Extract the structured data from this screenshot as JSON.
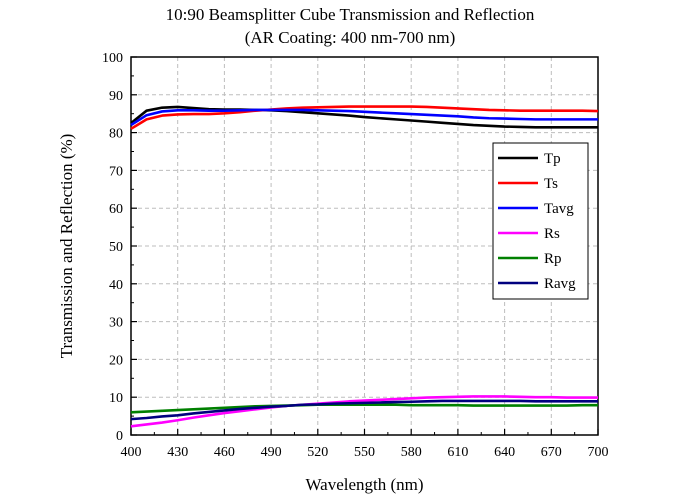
{
  "chart_data": {
    "type": "line",
    "title": "10:90 Beamsplitter Cube Transmission and Reflection",
    "subtitle": "(AR Coating: 400 nm-700 nm)",
    "xlabel": "Wavelength (nm)",
    "ylabel": "Transmission and Reflection (%)",
    "xlim": [
      400,
      700
    ],
    "ylim": [
      0,
      100
    ],
    "xticks": [
      400,
      430,
      460,
      490,
      520,
      550,
      580,
      610,
      640,
      670,
      700
    ],
    "yticks": [
      0,
      10,
      20,
      30,
      40,
      50,
      60,
      70,
      80,
      90,
      100
    ],
    "grid": true,
    "legend_position": "right",
    "x": [
      400,
      410,
      420,
      430,
      440,
      450,
      460,
      470,
      480,
      490,
      500,
      510,
      520,
      530,
      540,
      550,
      560,
      570,
      580,
      590,
      600,
      610,
      620,
      630,
      640,
      650,
      660,
      670,
      680,
      690,
      700
    ],
    "series": [
      {
        "name": "Tp",
        "color": "#000000",
        "values": [
          82.5,
          85.8,
          86.6,
          86.8,
          86.5,
          86.2,
          86.1,
          86.1,
          86.0,
          85.9,
          85.7,
          85.4,
          85.1,
          84.8,
          84.5,
          84.1,
          83.8,
          83.5,
          83.2,
          82.9,
          82.6,
          82.3,
          82.0,
          81.8,
          81.6,
          81.5,
          81.4,
          81.4,
          81.4,
          81.4,
          81.4
        ]
      },
      {
        "name": "Ts",
        "color": "#ff0000",
        "values": [
          81.0,
          83.5,
          84.5,
          84.8,
          84.9,
          84.9,
          85.1,
          85.4,
          85.8,
          86.1,
          86.4,
          86.6,
          86.7,
          86.8,
          86.9,
          86.9,
          86.9,
          86.9,
          86.9,
          86.8,
          86.6,
          86.4,
          86.2,
          86.0,
          85.9,
          85.8,
          85.8,
          85.8,
          85.8,
          85.8,
          85.7
        ]
      },
      {
        "name": "Tavg",
        "color": "#0000ff",
        "values": [
          82.0,
          84.6,
          85.6,
          85.9,
          85.9,
          85.8,
          85.8,
          85.9,
          86.0,
          86.0,
          86.0,
          86.0,
          85.9,
          85.8,
          85.7,
          85.5,
          85.3,
          85.1,
          84.9,
          84.7,
          84.5,
          84.3,
          84.0,
          83.8,
          83.7,
          83.6,
          83.5,
          83.5,
          83.5,
          83.5,
          83.5
        ]
      },
      {
        "name": "Rs",
        "color": "#ff00ff",
        "values": [
          2.3,
          2.8,
          3.3,
          3.9,
          4.6,
          5.2,
          5.8,
          6.3,
          6.8,
          7.3,
          7.7,
          8.0,
          8.3,
          8.6,
          8.9,
          9.1,
          9.3,
          9.5,
          9.7,
          9.9,
          10.0,
          10.1,
          10.2,
          10.2,
          10.2,
          10.1,
          10.0,
          10.0,
          9.9,
          9.9,
          9.9
        ]
      },
      {
        "name": "Rp",
        "color": "#008000",
        "values": [
          6.0,
          6.2,
          6.4,
          6.6,
          6.8,
          7.0,
          7.2,
          7.4,
          7.6,
          7.7,
          7.8,
          7.9,
          8.0,
          8.0,
          8.0,
          8.0,
          8.0,
          8.0,
          7.9,
          7.9,
          7.9,
          7.9,
          7.8,
          7.8,
          7.8,
          7.8,
          7.8,
          7.8,
          7.8,
          7.9,
          7.9
        ]
      },
      {
        "name": "Ravg",
        "color": "#00007f",
        "values": [
          4.2,
          4.5,
          4.9,
          5.2,
          5.7,
          6.1,
          6.5,
          6.9,
          7.2,
          7.5,
          7.7,
          8.0,
          8.1,
          8.3,
          8.4,
          8.5,
          8.6,
          8.7,
          8.8,
          8.9,
          9.0,
          9.0,
          9.0,
          9.0,
          9.0,
          9.0,
          8.9,
          8.9,
          8.9,
          8.9,
          8.9
        ]
      }
    ]
  }
}
